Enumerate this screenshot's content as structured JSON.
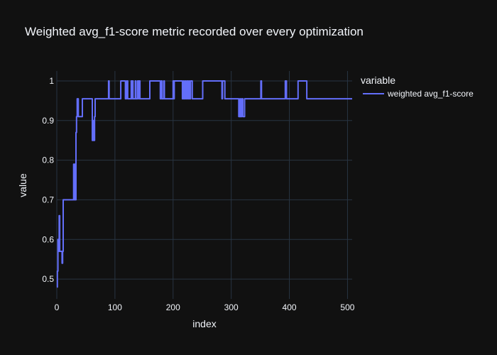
{
  "chart_data": {
    "type": "line",
    "title": "Weighted avg_f1-score metric recorded over every optimization",
    "xlabel": "index",
    "ylabel": "value",
    "xlim": [
      0,
      508
    ],
    "ylim": [
      0.45,
      1.025
    ],
    "x_ticks": [
      0,
      100,
      200,
      300,
      400,
      500
    ],
    "y_ticks": [
      0.5,
      0.6,
      0.7,
      0.8,
      0.9,
      1
    ],
    "grid": true,
    "legend": {
      "title": "variable",
      "placement": "right"
    },
    "colors": {
      "background": "#111111",
      "grid": "#283442",
      "line": "#636efa",
      "text": "#f2f5fa"
    },
    "series": [
      {
        "name": "weighted avg_f1-score",
        "step": true,
        "points": [
          [
            0,
            0.48
          ],
          [
            1,
            0.52
          ],
          [
            2,
            0.6
          ],
          [
            3,
            0.57
          ],
          [
            4,
            0.66
          ],
          [
            5,
            0.57
          ],
          [
            9,
            0.54
          ],
          [
            10,
            0.57
          ],
          [
            11,
            0.7
          ],
          [
            28,
            0.7
          ],
          [
            29,
            0.79
          ],
          [
            30,
            0.7
          ],
          [
            31,
            0.79
          ],
          [
            32,
            0.7
          ],
          [
            33,
            0.87
          ],
          [
            34,
            0.91
          ],
          [
            35,
            0.955
          ],
          [
            37,
            0.91
          ],
          [
            44,
            0.955
          ],
          [
            60,
            0.955
          ],
          [
            61,
            0.85
          ],
          [
            63,
            0.9
          ],
          [
            64,
            0.85
          ],
          [
            65,
            0.91
          ],
          [
            66,
            0.955
          ],
          [
            88,
            0.955
          ],
          [
            89,
            1
          ],
          [
            90,
            0.955
          ],
          [
            109,
            0.955
          ],
          [
            110,
            1
          ],
          [
            118,
            0.955
          ],
          [
            120,
            1
          ],
          [
            122,
            0.955
          ],
          [
            128,
            1
          ],
          [
            129,
            0.955
          ],
          [
            130,
            1
          ],
          [
            131,
            0.955
          ],
          [
            135,
            1
          ],
          [
            136,
            0.955
          ],
          [
            139,
            1
          ],
          [
            141,
            0.955
          ],
          [
            142,
            1
          ],
          [
            143,
            0.955
          ],
          [
            159,
            0.955
          ],
          [
            160,
            1
          ],
          [
            177,
            1
          ],
          [
            178,
            0.955
          ],
          [
            180,
            1
          ],
          [
            181,
            0.955
          ],
          [
            184,
            1
          ],
          [
            185,
            0.955
          ],
          [
            199,
            0.955
          ],
          [
            200,
            1
          ],
          [
            201,
            0.955
          ],
          [
            202,
            1
          ],
          [
            215,
            1
          ],
          [
            216,
            0.955
          ],
          [
            218,
            1
          ],
          [
            219,
            0.955
          ],
          [
            221,
            1
          ],
          [
            222,
            0.955
          ],
          [
            224,
            1
          ],
          [
            225,
            0.955
          ],
          [
            227,
            1
          ],
          [
            228,
            0.955
          ],
          [
            230,
            1
          ],
          [
            233,
            0.955
          ],
          [
            250,
            0.955
          ],
          [
            251,
            1
          ],
          [
            283,
            1
          ],
          [
            284,
            0.955
          ],
          [
            285,
            1
          ],
          [
            288,
            1
          ],
          [
            289,
            0.955
          ],
          [
            312,
            0.955
          ],
          [
            313,
            0.91
          ],
          [
            315,
            0.955
          ],
          [
            316,
            0.91
          ],
          [
            318,
            0.955
          ],
          [
            320,
            0.91
          ],
          [
            323,
            0.955
          ],
          [
            350,
            0.955
          ],
          [
            351,
            1
          ],
          [
            352,
            0.955
          ],
          [
            392,
            0.955
          ],
          [
            393,
            1
          ],
          [
            395,
            0.955
          ],
          [
            414,
            0.955
          ],
          [
            415,
            1
          ],
          [
            429,
            1
          ],
          [
            430,
            0.955
          ],
          [
            508,
            0.955
          ]
        ]
      }
    ]
  }
}
